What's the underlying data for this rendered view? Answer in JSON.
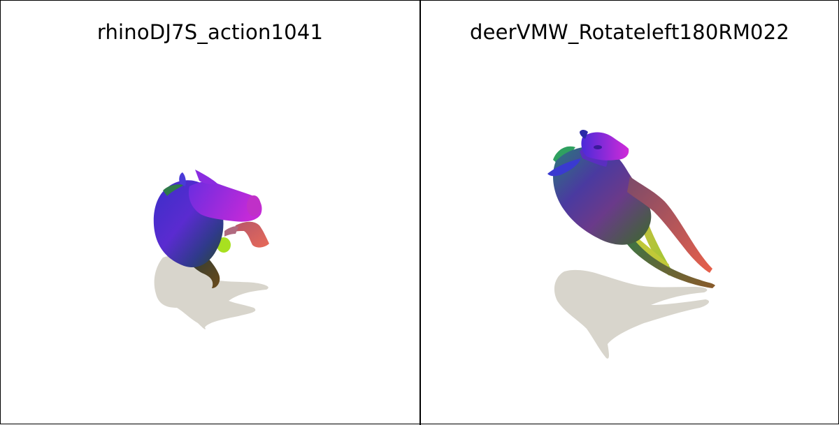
{
  "panels": [
    {
      "title": "rhinoDJ7S_action1041",
      "subject": "rhino-mesh"
    },
    {
      "title": "deerVMW_Rotateleft180RM022",
      "subject": "deer-mesh"
    }
  ],
  "colors": {
    "border": "#000000",
    "background": "#ffffff",
    "shadow": "#d8d5cc"
  }
}
